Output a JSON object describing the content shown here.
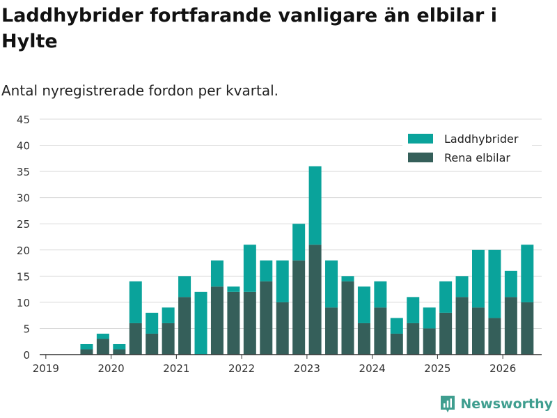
{
  "header": {
    "title": "Laddhybrider fortfarande vanligare än elbilar i Hylte",
    "subtitle": "Antal nyregistrerade fordon per kvartal."
  },
  "brand": {
    "name": "Newsworthy"
  },
  "colors": {
    "laddhybrider": "#0aa39b",
    "elbilar": "#355f5a",
    "grid": "#d9d9d9",
    "axis": "#333333",
    "brand": "#3f9e8f"
  },
  "chart_data": {
    "type": "bar",
    "stacked": true,
    "title": "Laddhybrider fortfarande vanligare än elbilar i Hylte",
    "subtitle": "Antal nyregistrerade fordon per kvartal.",
    "xlabel": "",
    "ylabel": "",
    "ylim": [
      0,
      45
    ],
    "yticks": [
      0,
      5,
      10,
      15,
      20,
      25,
      30,
      35,
      40,
      45
    ],
    "xticks": [
      "2019",
      "2020",
      "2021",
      "2022",
      "2023",
      "2024",
      "2025",
      "2026"
    ],
    "legend_position": "top-right",
    "grid": true,
    "categories": [
      "2019 Q1",
      "2019 Q2",
      "2019 Q3",
      "2019 Q4",
      "2020 Q1",
      "2020 Q2",
      "2020 Q3",
      "2020 Q4",
      "2021 Q1",
      "2021 Q2",
      "2021 Q3",
      "2021 Q4",
      "2022 Q1",
      "2022 Q2",
      "2022 Q3",
      "2022 Q4",
      "2023 Q1",
      "2023 Q2",
      "2023 Q3",
      "2023 Q4",
      "2024 Q1",
      "2024 Q2",
      "2024 Q3",
      "2024 Q4",
      "2025 Q1",
      "2025 Q2",
      "2025 Q3",
      "2025 Q4",
      "2026 Q1"
    ],
    "series": [
      {
        "name": "Rena elbilar",
        "values": [
          0,
          1,
          3,
          1,
          6,
          4,
          6,
          11,
          0,
          13,
          12,
          12,
          14,
          10,
          18,
          21,
          9,
          14,
          6,
          9,
          4,
          6,
          5,
          8,
          11,
          9,
          7,
          11,
          10
        ]
      },
      {
        "name": "Laddhybrider",
        "values": [
          0,
          1,
          1,
          1,
          8,
          4,
          3,
          4,
          12,
          5,
          1,
          9,
          4,
          8,
          7,
          15,
          9,
          1,
          7,
          5,
          3,
          5,
          4,
          6,
          4,
          11,
          13,
          5,
          11
        ]
      }
    ]
  }
}
